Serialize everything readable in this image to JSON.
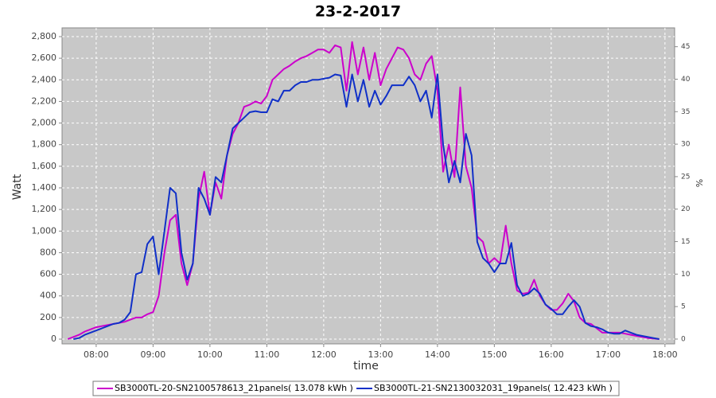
{
  "chart_data": {
    "type": "line",
    "title": "23-2-2017",
    "xlabel": "time",
    "ylabel": "Watt",
    "y2label": "%",
    "x": [
      7.5,
      7.6,
      7.7,
      7.8,
      7.9,
      8.0,
      8.1,
      8.2,
      8.3,
      8.4,
      8.5,
      8.6,
      8.7,
      8.8,
      8.9,
      9.0,
      9.1,
      9.2,
      9.3,
      9.4,
      9.5,
      9.6,
      9.7,
      9.8,
      9.9,
      10.0,
      10.1,
      10.2,
      10.3,
      10.4,
      10.5,
      10.6,
      10.7,
      10.8,
      10.9,
      11.0,
      11.1,
      11.2,
      11.3,
      11.4,
      11.5,
      11.6,
      11.7,
      11.8,
      11.9,
      12.0,
      12.1,
      12.2,
      12.3,
      12.4,
      12.5,
      12.6,
      12.7,
      12.8,
      12.9,
      13.0,
      13.1,
      13.2,
      13.3,
      13.4,
      13.5,
      13.6,
      13.7,
      13.8,
      13.9,
      14.0,
      14.1,
      14.2,
      14.3,
      14.4,
      14.5,
      14.6,
      14.7,
      14.8,
      14.9,
      15.0,
      15.1,
      15.2,
      15.3,
      15.4,
      15.5,
      15.6,
      15.7,
      15.8,
      15.9,
      16.0,
      16.1,
      16.2,
      16.3,
      16.4,
      16.5,
      16.6,
      16.7,
      16.8,
      16.9,
      17.0,
      17.1,
      17.2,
      17.3,
      17.4,
      17.5,
      17.6,
      17.7,
      17.8,
      17.9
    ],
    "series": [
      {
        "name": "SB3000TL-20-SN2100578613_21panels( 13.078 kWh )",
        "color": "#cc00cc",
        "values": [
          0,
          20,
          40,
          70,
          90,
          110,
          120,
          130,
          140,
          150,
          160,
          180,
          200,
          200,
          230,
          250,
          400,
          800,
          1100,
          1150,
          700,
          500,
          700,
          1300,
          1550,
          1150,
          1450,
          1300,
          1700,
          1900,
          2000,
          2150,
          2170,
          2200,
          2180,
          2250,
          2400,
          2450,
          2500,
          2530,
          2570,
          2600,
          2620,
          2650,
          2680,
          2680,
          2650,
          2720,
          2700,
          2300,
          2750,
          2450,
          2700,
          2400,
          2650,
          2350,
          2500,
          2600,
          2700,
          2680,
          2600,
          2450,
          2400,
          2550,
          2620,
          2300,
          1550,
          1800,
          1500,
          2330,
          1600,
          1400,
          950,
          900,
          700,
          750,
          700,
          1050,
          700,
          450,
          420,
          430,
          550,
          400,
          320,
          270,
          270,
          330,
          420,
          350,
          200,
          150,
          140,
          100,
          60,
          60,
          60,
          60,
          50,
          40,
          30,
          20,
          10,
          5,
          0
        ]
      },
      {
        "name": "SB3000TL-21-SN2130032031_19panels( 12.423 kWh )",
        "color": "#1030c8",
        "values": [
          null,
          0,
          10,
          40,
          60,
          80,
          100,
          120,
          140,
          150,
          180,
          250,
          600,
          620,
          880,
          950,
          600,
          1000,
          1400,
          1350,
          800,
          550,
          700,
          1400,
          1300,
          1150,
          1500,
          1450,
          1700,
          1950,
          2000,
          2050,
          2100,
          2110,
          2100,
          2100,
          2220,
          2200,
          2300,
          2300,
          2350,
          2380,
          2380,
          2400,
          2400,
          2410,
          2420,
          2450,
          2440,
          2150,
          2450,
          2200,
          2400,
          2150,
          2300,
          2170,
          2250,
          2350,
          2350,
          2350,
          2430,
          2350,
          2200,
          2300,
          2050,
          2450,
          1800,
          1450,
          1650,
          1450,
          1900,
          1700,
          900,
          750,
          700,
          620,
          700,
          700,
          890,
          500,
          400,
          420,
          470,
          420,
          320,
          280,
          230,
          230,
          300,
          360,
          300,
          150,
          120,
          110,
          90,
          60,
          50,
          50,
          80,
          60,
          40,
          30,
          20,
          10,
          0
        ]
      }
    ],
    "xlim": [
      7.4,
      18.17
    ],
    "xticks": [
      {
        "value": 8,
        "label": "08:00"
      },
      {
        "value": 9,
        "label": "09:00"
      },
      {
        "value": 10,
        "label": "10:00"
      },
      {
        "value": 11,
        "label": "11:00"
      },
      {
        "value": 12,
        "label": "12:00"
      },
      {
        "value": 13,
        "label": "13:00"
      },
      {
        "value": 14,
        "label": "14:00"
      },
      {
        "value": 15,
        "label": "15:00"
      },
      {
        "value": 16,
        "label": "16:00"
      },
      {
        "value": 17,
        "label": "17:00"
      },
      {
        "value": 18,
        "label": "18:00"
      }
    ],
    "ylim": [
      -44,
      2881
    ],
    "yticks": [
      0,
      200,
      400,
      600,
      800,
      {
        "value": 1000,
        "label": "1,000"
      },
      {
        "value": 1200,
        "label": "1,200"
      },
      {
        "value": 1400,
        "label": "1,400"
      },
      {
        "value": 1600,
        "label": "1,600"
      },
      {
        "value": 1800,
        "label": "1,800"
      },
      {
        "value": 2000,
        "label": "2,000"
      },
      {
        "value": 2200,
        "label": "2,200"
      },
      {
        "value": 2400,
        "label": "2,400"
      },
      {
        "value": 2600,
        "label": "2,600"
      },
      {
        "value": 2800,
        "label": "2,800"
      }
    ],
    "y2lim": [
      -0.74,
      47.9
    ],
    "y2ticks": [
      0,
      5,
      10,
      15,
      20,
      25,
      30,
      35,
      40,
      45
    ],
    "grid": true,
    "legend": "bottom"
  }
}
